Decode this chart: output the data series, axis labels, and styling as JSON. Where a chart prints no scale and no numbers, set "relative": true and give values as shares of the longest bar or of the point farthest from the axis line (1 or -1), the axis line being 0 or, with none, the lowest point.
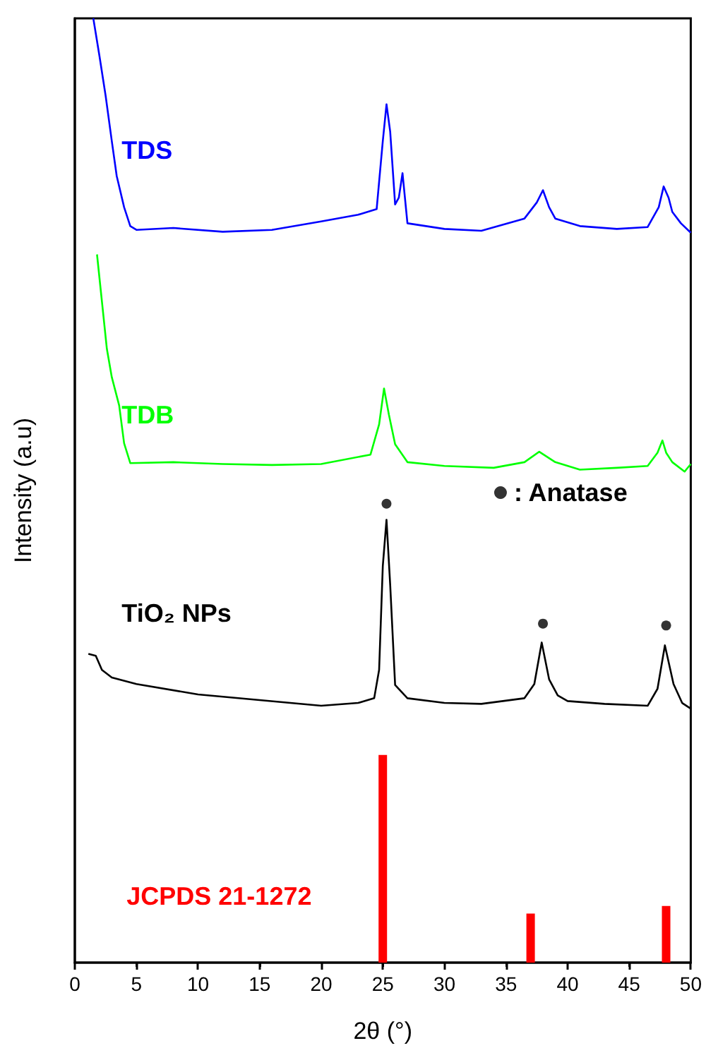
{
  "chart_data": {
    "type": "line",
    "xlabel": "2θ (°)",
    "ylabel": "Intensity (a.u)",
    "relative": true,
    "xlim": [
      0,
      50
    ],
    "xticks": [
      0,
      5,
      10,
      15,
      20,
      25,
      30,
      35,
      40,
      45,
      50
    ],
    "grid": false,
    "legend": "right",
    "marker": "none",
    "line_style": "solid",
    "series": [
      {
        "name": "TDS",
        "color": "#0000ff",
        "x": [
          1.5,
          2.0,
          2.5,
          3.0,
          3.4,
          4.0,
          4.5,
          5,
          8,
          12,
          16,
          20,
          23,
          24.5,
          25.0,
          25.3,
          25.6,
          26.0,
          26.3,
          26.6,
          27.0,
          30,
          33,
          36.5,
          37.5,
          38.0,
          38.5,
          39.0,
          41,
          44,
          46.5,
          47.4,
          47.8,
          48.2,
          48.5,
          49.2,
          50
        ],
        "values": [
          1.0,
          0.96,
          0.918,
          0.87,
          0.833,
          0.8,
          0.78,
          0.776,
          0.778,
          0.774,
          0.776,
          0.785,
          0.792,
          0.798,
          0.87,
          0.909,
          0.88,
          0.803,
          0.81,
          0.836,
          0.783,
          0.777,
          0.775,
          0.788,
          0.805,
          0.818,
          0.8,
          0.788,
          0.78,
          0.777,
          0.779,
          0.8,
          0.822,
          0.81,
          0.795,
          0.783,
          0.773
        ]
      },
      {
        "name": "TDB",
        "color": "#00ff00",
        "x": [
          1.8,
          2.2,
          2.6,
          3.0,
          3.6,
          4.0,
          4.5,
          8,
          12,
          16,
          20,
          24,
          24.7,
          25.1,
          25.5,
          26.0,
          27.0,
          30,
          34,
          36.5,
          37.7,
          39,
          41,
          44,
          46.5,
          47.3,
          47.7,
          48.0,
          48.5,
          49.5,
          50
        ],
        "values": [
          0.75,
          0.7,
          0.65,
          0.62,
          0.59,
          0.55,
          0.529,
          0.53,
          0.528,
          0.527,
          0.528,
          0.538,
          0.57,
          0.608,
          0.58,
          0.549,
          0.53,
          0.526,
          0.524,
          0.53,
          0.541,
          0.53,
          0.522,
          0.524,
          0.526,
          0.54,
          0.553,
          0.54,
          0.53,
          0.52,
          0.528
        ]
      },
      {
        "name": "TiO₂ NPs",
        "color": "#000000",
        "x": [
          1.1,
          1.7,
          2.2,
          3,
          5,
          10,
          15,
          20,
          23,
          24.3,
          24.7,
          25.0,
          25.3,
          25.6,
          26.0,
          27,
          30,
          33,
          36.5,
          37.3,
          37.9,
          38.5,
          39.2,
          40,
          43,
          46.5,
          47.3,
          47.9,
          48.6,
          49.3,
          50
        ],
        "values": [
          0.327,
          0.325,
          0.31,
          0.302,
          0.295,
          0.284,
          0.278,
          0.272,
          0.275,
          0.28,
          0.31,
          0.42,
          0.469,
          0.4,
          0.294,
          0.28,
          0.275,
          0.274,
          0.28,
          0.295,
          0.339,
          0.3,
          0.283,
          0.277,
          0.274,
          0.272,
          0.29,
          0.336,
          0.295,
          0.275,
          0.269
        ]
      },
      {
        "name": ": Anatase",
        "type": "scatter",
        "marker": "circle",
        "color": "#000000",
        "x": [
          25.3,
          38,
          48
        ],
        "values": [
          0.486,
          0.359,
          0.357
        ]
      },
      {
        "name": "JCPDS 21-1272",
        "type": "bar",
        "color": "#ff0000",
        "x": [
          25,
          37,
          48
        ],
        "values": [
          0.22,
          0.052,
          0.06
        ]
      }
    ]
  }
}
